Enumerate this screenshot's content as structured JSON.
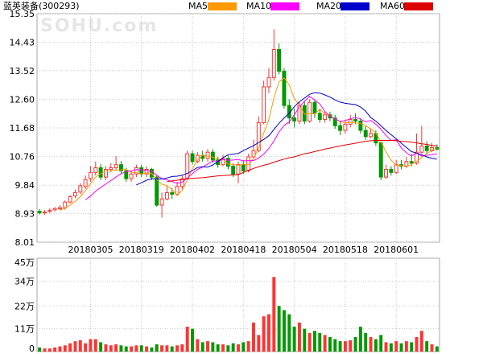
{
  "header": {
    "title": "蓝英装备",
    "code": "(300293)",
    "watermark": "SOHU.com"
  },
  "legend": [
    {
      "label": "MA5",
      "color": "#ff9900"
    },
    {
      "label": "MA10",
      "color": "#ff00ff"
    },
    {
      "label": "MA20",
      "color": "#0000cc"
    },
    {
      "label": "MA60",
      "color": "#dd0000"
    }
  ],
  "colors": {
    "up": "#ff3333",
    "down": "#009900",
    "grid": "#c8c8c8",
    "frame": "#aaaaaa"
  },
  "chart_data": {
    "type": "candlestick",
    "price_ticks": [
      "15.35",
      "14.43",
      "13.52",
      "12.60",
      "11.68",
      "10.76",
      "9.84",
      "8.93",
      "8.01"
    ],
    "ylim": [
      8.01,
      15.35
    ],
    "date_labels": [
      {
        "label": "20180305",
        "index": 10
      },
      {
        "label": "20180319",
        "index": 20
      },
      {
        "label": "20180402",
        "index": 30
      },
      {
        "label": "20180418",
        "index": 40
      },
      {
        "label": "20180504",
        "index": 50
      },
      {
        "label": "20180518",
        "index": 60
      },
      {
        "label": "20180601",
        "index": 70
      }
    ],
    "volume_ticks": [
      "45万",
      "34万",
      "22万",
      "11万",
      "0"
    ],
    "volume_ylim": [
      0,
      45
    ],
    "volume_unit": "万",
    "candles": [
      [
        9.0,
        8.95,
        9.07,
        8.9
      ],
      [
        8.95,
        8.98,
        9.04,
        8.89
      ],
      [
        9.0,
        9.03,
        9.1,
        8.95
      ],
      [
        9.05,
        9.09,
        9.14,
        9.0
      ],
      [
        9.08,
        9.12,
        9.2,
        9.04
      ],
      [
        9.12,
        9.3,
        9.35,
        9.05
      ],
      [
        9.3,
        9.47,
        9.52,
        9.25
      ],
      [
        9.5,
        9.6,
        9.7,
        9.42
      ],
      [
        9.62,
        9.82,
        9.9,
        9.55
      ],
      [
        9.8,
        10.02,
        10.15,
        9.72
      ],
      [
        10.05,
        10.25,
        10.45,
        9.95
      ],
      [
        10.25,
        10.4,
        10.6,
        10.15
      ],
      [
        10.4,
        10.1,
        10.52,
        10.0
      ],
      [
        10.1,
        10.35,
        10.45,
        10.0
      ],
      [
        10.35,
        10.4,
        10.55,
        10.25
      ],
      [
        10.4,
        10.5,
        10.78,
        10.3
      ],
      [
        10.5,
        10.3,
        10.62,
        10.2
      ],
      [
        10.3,
        10.05,
        10.4,
        9.95
      ],
      [
        10.05,
        10.2,
        10.3,
        9.95
      ],
      [
        10.2,
        10.4,
        10.5,
        10.1
      ],
      [
        10.4,
        10.2,
        10.5,
        10.1
      ],
      [
        10.2,
        10.35,
        10.45,
        10.1
      ],
      [
        10.35,
        10.1,
        10.4,
        10.0
      ],
      [
        10.1,
        9.2,
        10.15,
        9.15
      ],
      [
        9.2,
        9.4,
        9.6,
        8.8
      ],
      [
        9.4,
        9.6,
        9.8,
        9.35
      ],
      [
        9.6,
        9.55,
        9.75,
        9.4
      ],
      [
        9.55,
        9.8,
        9.95,
        9.5
      ],
      [
        9.8,
        10.05,
        10.15,
        9.7
      ],
      [
        10.05,
        10.85,
        10.95,
        10.0
      ],
      [
        10.85,
        10.6,
        10.95,
        10.5
      ],
      [
        10.6,
        10.8,
        10.9,
        10.55
      ],
      [
        10.8,
        10.7,
        10.95,
        10.6
      ],
      [
        10.7,
        10.9,
        11.0,
        10.6
      ],
      [
        10.9,
        10.65,
        11.0,
        10.55
      ],
      [
        10.65,
        10.5,
        10.75,
        10.4
      ],
      [
        10.5,
        10.7,
        10.82,
        10.45
      ],
      [
        10.7,
        10.45,
        10.8,
        10.35
      ],
      [
        10.45,
        10.2,
        10.55,
        10.1
      ],
      [
        10.2,
        10.5,
        10.6,
        9.9
      ],
      [
        10.5,
        10.3,
        10.65,
        10.2
      ],
      [
        10.3,
        10.75,
        10.85,
        10.25
      ],
      [
        10.75,
        10.95,
        11.3,
        10.7
      ],
      [
        10.95,
        11.85,
        12.05,
        10.9
      ],
      [
        11.85,
        13.0,
        13.2,
        11.8
      ],
      [
        13.0,
        13.3,
        13.6,
        12.8
      ],
      [
        13.3,
        14.2,
        14.85,
        13.2
      ],
      [
        14.2,
        13.5,
        14.4,
        13.4
      ],
      [
        13.5,
        12.4,
        13.6,
        12.3
      ],
      [
        12.4,
        12.0,
        12.6,
        11.8
      ],
      [
        12.0,
        11.9,
        12.3,
        11.7
      ],
      [
        11.9,
        12.4,
        12.5,
        11.8
      ],
      [
        12.4,
        11.9,
        12.55,
        11.8
      ],
      [
        11.9,
        12.5,
        12.6,
        11.85
      ],
      [
        12.5,
        12.15,
        12.6,
        12.0
      ],
      [
        12.15,
        11.95,
        12.3,
        11.85
      ],
      [
        11.95,
        12.1,
        12.2,
        11.85
      ],
      [
        12.1,
        12.0,
        12.2,
        11.9
      ],
      [
        12.0,
        11.75,
        12.1,
        11.65
      ],
      [
        11.75,
        11.6,
        11.9,
        11.45
      ],
      [
        11.6,
        11.8,
        11.95,
        11.5
      ],
      [
        11.8,
        11.95,
        12.1,
        11.7
      ],
      [
        11.95,
        11.9,
        12.15,
        11.8
      ],
      [
        11.9,
        11.6,
        12.0,
        11.5
      ],
      [
        11.6,
        11.4,
        11.75,
        11.3
      ],
      [
        11.4,
        11.5,
        11.65,
        11.35
      ],
      [
        11.5,
        11.2,
        11.6,
        11.1
      ],
      [
        11.2,
        10.1,
        11.25,
        10.0
      ],
      [
        10.1,
        10.35,
        10.5,
        10.05
      ],
      [
        10.35,
        10.25,
        10.45,
        10.15
      ],
      [
        10.25,
        10.5,
        10.65,
        10.2
      ],
      [
        10.5,
        10.45,
        10.65,
        10.35
      ],
      [
        10.45,
        10.6,
        10.75,
        10.4
      ],
      [
        10.6,
        10.55,
        10.85,
        10.45
      ],
      [
        10.55,
        10.9,
        11.5,
        10.5
      ],
      [
        10.9,
        11.1,
        11.75,
        10.85
      ],
      [
        11.1,
        10.95,
        11.25,
        10.85
      ],
      [
        10.95,
        11.05,
        11.2,
        10.9
      ],
      [
        11.05,
        11.0,
        11.15,
        10.95
      ]
    ],
    "volumes": [
      2,
      1.5,
      1.5,
      2,
      2.5,
      3,
      4,
      5,
      5.5,
      4,
      6,
      6,
      4.5,
      3.5,
      3,
      3.5,
      3,
      2.5,
      2.5,
      3,
      3,
      2.5,
      2,
      3.5,
      3,
      3,
      2.5,
      3,
      3.5,
      12,
      11,
      6,
      4.5,
      5,
      4.5,
      3.5,
      3.5,
      3,
      4,
      3.5,
      4.5,
      5,
      14,
      8,
      17,
      18,
      36,
      22,
      20,
      18,
      12,
      14,
      11,
      9,
      10,
      9,
      8,
      7,
      6,
      5,
      5,
      5.5,
      7,
      12,
      9,
      7,
      6,
      8,
      4.5,
      4,
      5,
      4,
      5,
      4.5,
      7,
      10,
      5,
      3.5,
      2.5
    ],
    "ma5": [
      null,
      null,
      null,
      null,
      9.04,
      9.1,
      9.2,
      9.32,
      9.47,
      9.67,
      9.88,
      10.1,
      10.21,
      10.3,
      10.31,
      10.33,
      10.33,
      10.35,
      10.25,
      10.24,
      10.2,
      10.24,
      10.22,
      10.02,
      9.87,
      9.83,
      9.7,
      9.51,
      9.68,
      10.01,
      10.38,
      10.64,
      10.81,
      10.77,
      10.74,
      10.68,
      10.67,
      10.52,
      10.51,
      10.47,
      10.52,
      10.5,
      10.69,
      11.04,
      11.51,
      11.95,
      12.65,
      13.16,
      13.28,
      13.07,
      12.62,
      12.42,
      12.12,
      12.14,
      12.13,
      12.28,
      12.13,
      12.07,
      11.97,
      11.88,
      11.84,
      11.86,
      11.84,
      11.83,
      11.75,
      11.65,
      11.52,
      11.24,
      10.91,
      10.64,
      10.48,
      10.47,
      10.43,
      10.51,
      10.6,
      10.73,
      10.85,
      10.97,
      11.04
    ],
    "ma10": [
      null,
      null,
      null,
      null,
      null,
      null,
      null,
      null,
      null,
      9.37,
      9.49,
      9.65,
      9.76,
      9.88,
      9.99,
      10.1,
      10.21,
      10.28,
      10.3,
      10.34,
      10.33,
      10.32,
      10.29,
      10.16,
      10.05,
      10.01,
      9.96,
      9.9,
      9.94,
      10.07,
      10.21,
      10.35,
      10.42,
      10.52,
      10.62,
      10.61,
      10.67,
      10.64,
      10.65,
      10.67,
      10.62,
      10.63,
      10.63,
      10.71,
      10.84,
      11.02,
      11.26,
      11.55,
      11.76,
      11.87,
      12.1,
      12.35,
      12.54,
      12.69,
      12.58,
      12.45,
      12.21,
      12.06,
      11.97,
      11.89,
      11.92,
      11.97,
      12.02,
      11.96,
      11.88,
      11.92,
      11.8,
      11.64,
      11.44,
      11.28,
      11.3,
      11.04,
      10.88,
      10.78,
      10.87,
      10.78,
      10.8,
      10.82,
      10.85
    ],
    "ma20": [
      null,
      null,
      null,
      null,
      null,
      null,
      null,
      null,
      null,
      null,
      null,
      null,
      null,
      null,
      null,
      null,
      null,
      null,
      null,
      9.85,
      9.92,
      10.0,
      10.05,
      10.04,
      10.04,
      10.07,
      10.12,
      10.13,
      10.16,
      10.22,
      10.31,
      10.41,
      10.43,
      10.42,
      10.49,
      10.6,
      10.72,
      10.82,
      10.84,
      10.86,
      10.95,
      11.03,
      11.11,
      11.21,
      11.31,
      11.43,
      11.63,
      11.83,
      12.0,
      12.15,
      12.36,
      12.52,
      12.64,
      12.76,
      12.81,
      12.8,
      12.74,
      12.67,
      12.58,
      12.51,
      12.47,
      12.45,
      12.43,
      12.35,
      12.22,
      12.01,
      11.9,
      11.75,
      11.6,
      11.46,
      11.33,
      11.19,
      11.05,
      10.92,
      10.87,
      10.82,
      10.75,
      10.7,
      10.68
    ],
    "ma60": [
      null,
      null,
      null,
      null,
      null,
      null,
      null,
      null,
      null,
      null,
      null,
      null,
      null,
      null,
      null,
      null,
      null,
      null,
      null,
      null,
      null,
      null,
      null,
      null,
      null,
      9.95,
      9.98,
      10.0,
      10.02,
      10.05,
      10.06,
      10.07,
      10.08,
      10.1,
      10.12,
      10.14,
      10.15,
      10.16,
      10.17,
      10.18,
      10.25,
      10.32,
      10.38,
      10.43,
      10.48,
      10.52,
      10.58,
      10.63,
      10.68,
      10.72,
      10.75,
      10.8,
      10.85,
      10.88,
      10.92,
      10.96,
      11.0,
      11.03,
      11.07,
      11.1,
      11.13,
      11.16,
      11.19,
      11.22,
      11.25,
      11.27,
      11.28,
      11.28,
      11.28,
      11.28,
      11.27,
      11.25,
      11.24,
      11.22,
      11.2,
      11.17,
      11.15,
      11.12,
      11.1
    ]
  }
}
